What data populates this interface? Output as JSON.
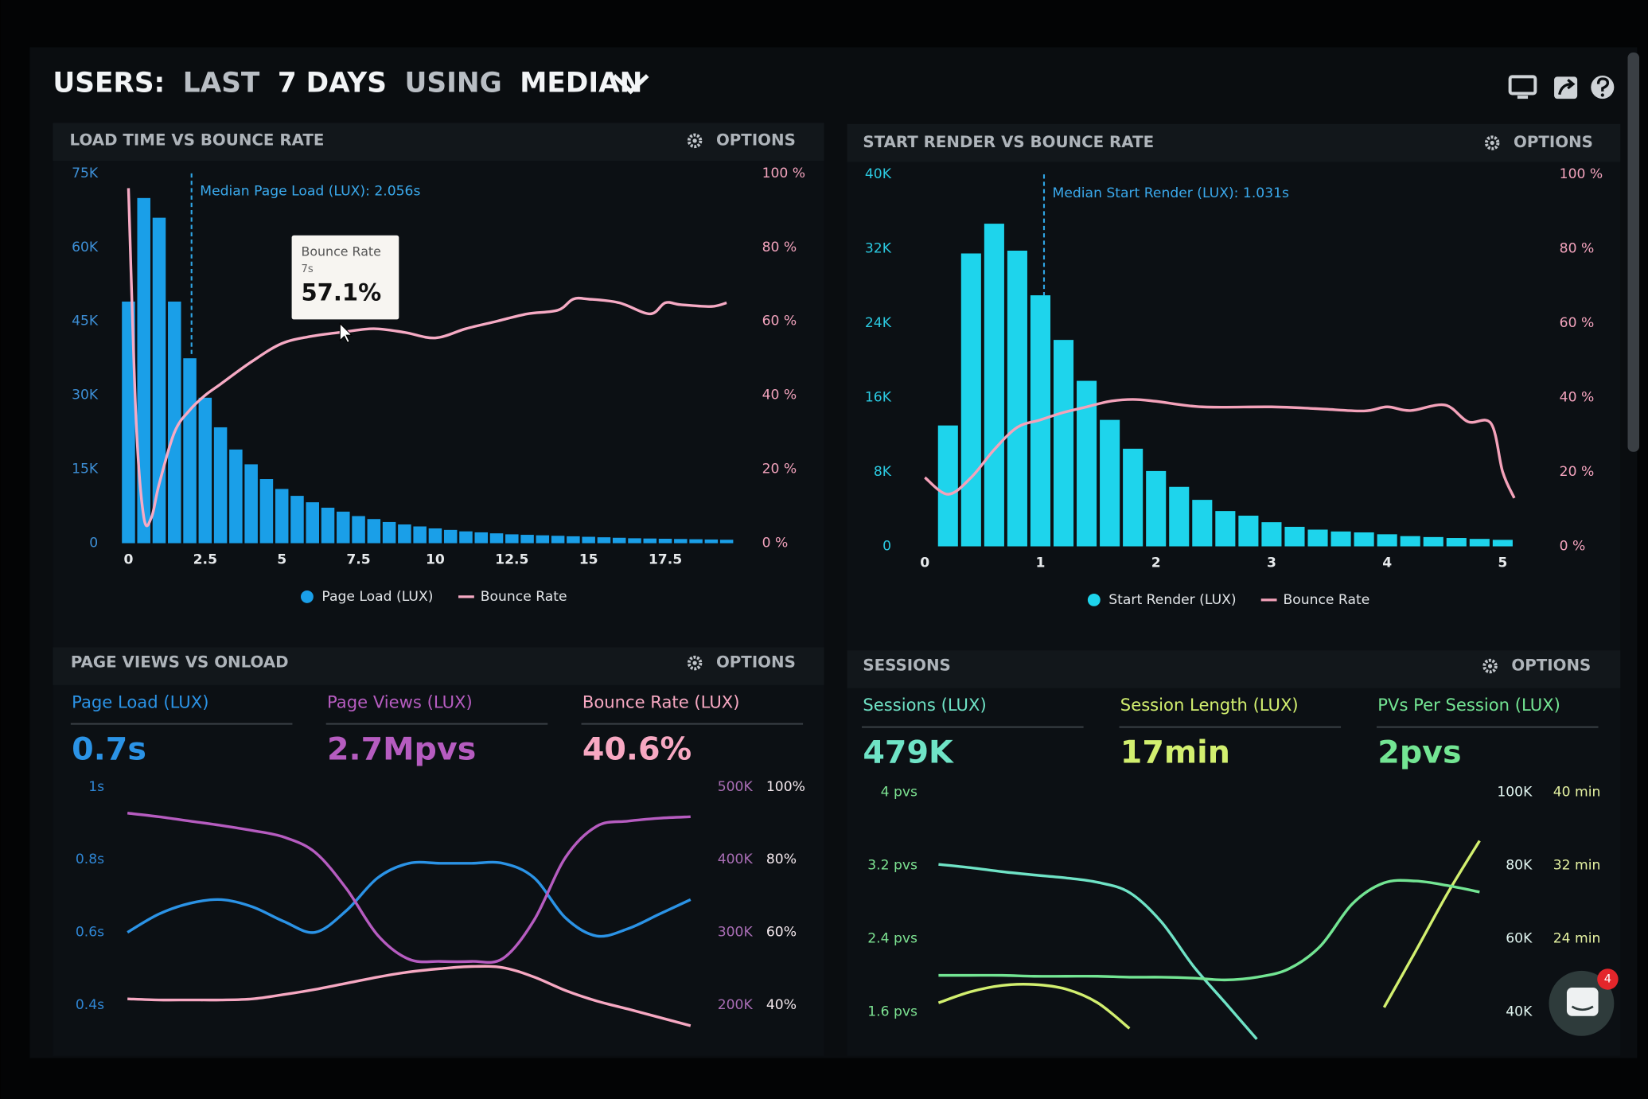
{
  "header": {
    "title": [
      "USERS:",
      "LAST",
      "7 DAYS",
      "USING",
      "MEDIAN"
    ]
  },
  "chart_data": [
    {
      "type": "bar",
      "title": "LOAD TIME VS BOUNCE RATE",
      "options": "OPTIONS",
      "xlim": [
        -0.4,
        19.9
      ],
      "xticks": [
        0,
        2.5,
        5,
        7.5,
        10,
        12.5,
        15,
        17.5
      ],
      "ylim": [
        0,
        75000
      ],
      "yticks": [
        0,
        {
          "value": 15000,
          "label": "15K"
        },
        {
          "value": 30000,
          "label": "30K"
        },
        {
          "value": 45000,
          "label": "45K"
        },
        {
          "value": 60000,
          "label": "60K"
        },
        {
          "value": 75000,
          "label": "75K"
        }
      ],
      "y2lim": [
        0,
        100
      ],
      "y2ticks": [
        {
          "value": 0,
          "label": "0 %"
        },
        {
          "value": 20,
          "label": "20 %"
        },
        {
          "value": 40,
          "label": "40 %"
        },
        {
          "value": 60,
          "label": "60 %"
        },
        {
          "value": 80,
          "label": "80 %"
        },
        {
          "value": 100,
          "label": "100 %"
        }
      ],
      "series": [
        {
          "name": "Page Load (LUX)",
          "type": "bar",
          "color": "#1a9fe8",
          "x": [
            0,
            0.5,
            1,
            1.5,
            2,
            2.5,
            3,
            3.5,
            4,
            4.5,
            5,
            5.5,
            6,
            6.5,
            7,
            7.5,
            8,
            8.5,
            9,
            9.5,
            10,
            10.5,
            11,
            11.5,
            12,
            12.5,
            13,
            13.5,
            14,
            14.5,
            15,
            15.5,
            16,
            16.5,
            17,
            17.5,
            18,
            18.5,
            19,
            19.5
          ],
          "values": [
            49000,
            70000,
            66000,
            49000,
            37500,
            29500,
            23500,
            19000,
            16000,
            13000,
            11000,
            9600,
            8300,
            7200,
            6400,
            5500,
            4900,
            4300,
            3800,
            3400,
            3000,
            2700,
            2400,
            2200,
            2000,
            1800,
            1700,
            1600,
            1500,
            1400,
            1300,
            1200,
            1100,
            1000,
            950,
            900,
            850,
            800,
            750,
            700
          ]
        },
        {
          "name": "Bounce Rate",
          "type": "line",
          "axis": "y2",
          "color": "#f6aac4",
          "x": [
            0,
            0.25,
            0.5,
            0.75,
            1,
            1.5,
            2,
            2.5,
            3,
            4,
            5,
            6,
            7,
            8,
            9,
            10,
            11,
            12,
            13,
            14,
            14.5,
            15,
            16,
            17,
            17.5,
            18,
            19,
            19.5
          ],
          "values": [
            96,
            33,
            7,
            7,
            16,
            30,
            36,
            40,
            43,
            49,
            54,
            56,
            57.1,
            58,
            57,
            55.5,
            58,
            60,
            62,
            63,
            66,
            66,
            65,
            62,
            65,
            64.5,
            64,
            65
          ]
        }
      ],
      "annotation": {
        "x": 2.056,
        "label": "Median Page Load (LUX): 2.056s"
      },
      "tooltip": {
        "title": "Bounce Rate",
        "x_label": "7s",
        "value_label": "57.1%",
        "x": 7,
        "value": 57.1
      }
    },
    {
      "type": "bar",
      "title": "START RENDER VS BOUNCE RATE",
      "options": "OPTIONS",
      "xlim": [
        -0.1,
        5.2
      ],
      "xticks": [
        0,
        1,
        2,
        3,
        4,
        5
      ],
      "ylim": [
        0,
        40000
      ],
      "yticks": [
        0,
        {
          "value": 8000,
          "label": "8K"
        },
        {
          "value": 16000,
          "label": "16K"
        },
        {
          "value": 24000,
          "label": "24K"
        },
        {
          "value": 32000,
          "label": "32K"
        },
        {
          "value": 40000,
          "label": "40K"
        }
      ],
      "y2lim": [
        0,
        100
      ],
      "y2ticks": [
        {
          "value": 0,
          "label": "0 %"
        },
        {
          "value": 20,
          "label": "20 %"
        },
        {
          "value": 40,
          "label": "40 %"
        },
        {
          "value": 60,
          "label": "60 %"
        },
        {
          "value": 80,
          "label": "80 %"
        },
        {
          "value": 100,
          "label": "100 %"
        }
      ],
      "series": [
        {
          "name": "Start Render (LUX)",
          "type": "bar",
          "color": "#1ed4ec",
          "x": [
            0.2,
            0.4,
            0.6,
            0.8,
            1,
            1.2,
            1.4,
            1.6,
            1.8,
            2,
            2.2,
            2.4,
            2.6,
            2.8,
            3,
            3.2,
            3.4,
            3.6,
            3.8,
            4,
            4.2,
            4.4,
            4.6,
            4.8,
            5
          ],
          "values": [
            13000,
            31500,
            34700,
            31800,
            27000,
            22200,
            17800,
            13600,
            10500,
            8100,
            6400,
            5000,
            3800,
            3300,
            2600,
            2100,
            1800,
            1600,
            1500,
            1300,
            1100,
            1000,
            900,
            800,
            700
          ]
        },
        {
          "name": "Bounce Rate",
          "type": "line",
          "axis": "y2",
          "color": "#f4a2ba",
          "x": [
            0,
            0.2,
            0.4,
            0.6,
            0.8,
            1,
            1.2,
            1.4,
            1.6,
            1.8,
            2,
            2.4,
            3,
            3.4,
            3.8,
            4,
            4.2,
            4.5,
            4.7,
            4.9,
            5,
            5.1
          ],
          "values": [
            18.5,
            14,
            18.5,
            26,
            32,
            34,
            36,
            37.5,
            39,
            39.5,
            39,
            37.5,
            37.5,
            37,
            36.4,
            37.5,
            36.5,
            38,
            33.5,
            33,
            20,
            13
          ]
        }
      ],
      "annotation": {
        "x": 1.031,
        "label": "Median Start Render (LUX): 1.031s"
      }
    },
    {
      "type": "line",
      "title": "PAGE VIEWS VS ONLOAD",
      "options": "OPTIONS",
      "x": [
        0,
        1,
        2,
        3,
        4,
        5,
        6,
        7,
        8,
        9,
        10,
        11,
        12,
        13,
        14,
        15,
        16,
        17,
        18
      ],
      "xlim": [
        0,
        18
      ],
      "ylim": [
        0.26,
        1
      ],
      "yticks": [
        {
          "value": 1,
          "label": "1s"
        },
        {
          "value": 0.8,
          "label": "0.8s"
        },
        {
          "value": 0.6,
          "label": "0.6s"
        },
        {
          "value": 0.4,
          "label": "0.4s"
        }
      ],
      "y2lim": [
        130000,
        500000
      ],
      "y2ticks": [
        {
          "value": 500000,
          "label": "500K"
        },
        {
          "value": 400000,
          "label": "400K"
        },
        {
          "value": 300000,
          "label": "300K"
        },
        {
          "value": 200000,
          "label": "200K"
        }
      ],
      "y3lim": [
        26,
        100
      ],
      "y3ticks": [
        {
          "value": 100,
          "label": "100%"
        },
        {
          "value": 80,
          "label": "80%"
        },
        {
          "value": 60,
          "label": "60%"
        },
        {
          "value": 40,
          "label": "40%"
        }
      ],
      "series": [
        {
          "name": "Page Load (LUX)",
          "stat": "0.7s",
          "color": "#2b93e6",
          "values": [
            0.6,
            0.65,
            0.68,
            0.69,
            0.67,
            0.63,
            0.6,
            0.66,
            0.75,
            0.79,
            0.79,
            0.79,
            0.79,
            0.75,
            0.64,
            0.59,
            0.61,
            0.65,
            0.69
          ]
        },
        {
          "name": "Page Views (LUX)",
          "stat": "2.7Mpvs",
          "axis": "y2",
          "color": "#b65cc0",
          "values": [
            464000,
            459000,
            453000,
            447000,
            440000,
            431000,
            410000,
            360000,
            296000,
            263000,
            260000,
            260000,
            264000,
            317000,
            403000,
            446000,
            453000,
            457000,
            459000
          ]
        },
        {
          "name": "Bounce Rate (LUX)",
          "stat": "40.6%",
          "axis": "y3",
          "color": "#f7a8c2",
          "values": [
            41.7,
            41.4,
            41.4,
            41.4,
            41.7,
            42.9,
            44.3,
            46,
            47.7,
            49.1,
            50,
            50.6,
            50.3,
            47.7,
            44,
            41.1,
            38.9,
            36.6,
            34.3
          ]
        }
      ]
    },
    {
      "type": "line",
      "title": "SESSIONS",
      "options": "OPTIONS",
      "x": [
        0,
        1,
        2,
        3,
        4,
        5,
        6,
        7,
        8,
        9,
        10,
        11,
        12,
        13,
        14,
        15,
        16,
        17
      ],
      "xlim": [
        0,
        17
      ],
      "ylim": [
        1.12,
        4
      ],
      "yticks": [
        {
          "value": 4,
          "label": "4 pvs"
        },
        {
          "value": 3.2,
          "label": "3.2 pvs"
        },
        {
          "value": 2.4,
          "label": "2.4 pvs"
        },
        {
          "value": 1.6,
          "label": "1.6 pvs"
        }
      ],
      "y2lim": [
        28000,
        100000
      ],
      "y2ticks": [
        {
          "value": 100000,
          "label": "100K"
        },
        {
          "value": 80000,
          "label": "80K"
        },
        {
          "value": 60000,
          "label": "60K"
        },
        {
          "value": 40000,
          "label": "40K"
        }
      ],
      "y3lim": [
        11.2,
        40
      ],
      "y3ticks": [
        {
          "value": 40,
          "label": "40 min"
        },
        {
          "value": 32,
          "label": "32 min"
        },
        {
          "value": 24,
          "label": "24 min"
        }
      ],
      "series": [
        {
          "name": "Sessions (LUX)",
          "stat": "479K",
          "axis": "y2",
          "color": "#6fe3c6",
          "values": [
            80300,
            79400,
            78300,
            77400,
            76600,
            75400,
            72600,
            64600,
            52600,
            42600,
            32600,
            null,
            null,
            null,
            null,
            null,
            null,
            null
          ]
        },
        {
          "name": "Session Length (LUX)",
          "stat": "17min",
          "axis": "y3",
          "color": "#d2ef6f",
          "values": [
            17,
            18.2,
            18.9,
            19,
            18.5,
            17,
            14.2,
            null,
            null,
            null,
            null,
            null,
            null,
            null,
            16.5,
            22.7,
            29,
            34.7
          ]
        },
        {
          "name": "PVs Per Session (LUX)",
          "stat": "2pvs",
          "color": "#73e593",
          "values": [
            2,
            2,
            2,
            1.99,
            1.99,
            1.99,
            1.98,
            1.98,
            1.97,
            1.95,
            1.98,
            2.07,
            2.32,
            2.78,
            3.01,
            3.03,
            2.98,
            2.91
          ]
        }
      ]
    }
  ],
  "chat": {
    "badge": "4"
  }
}
